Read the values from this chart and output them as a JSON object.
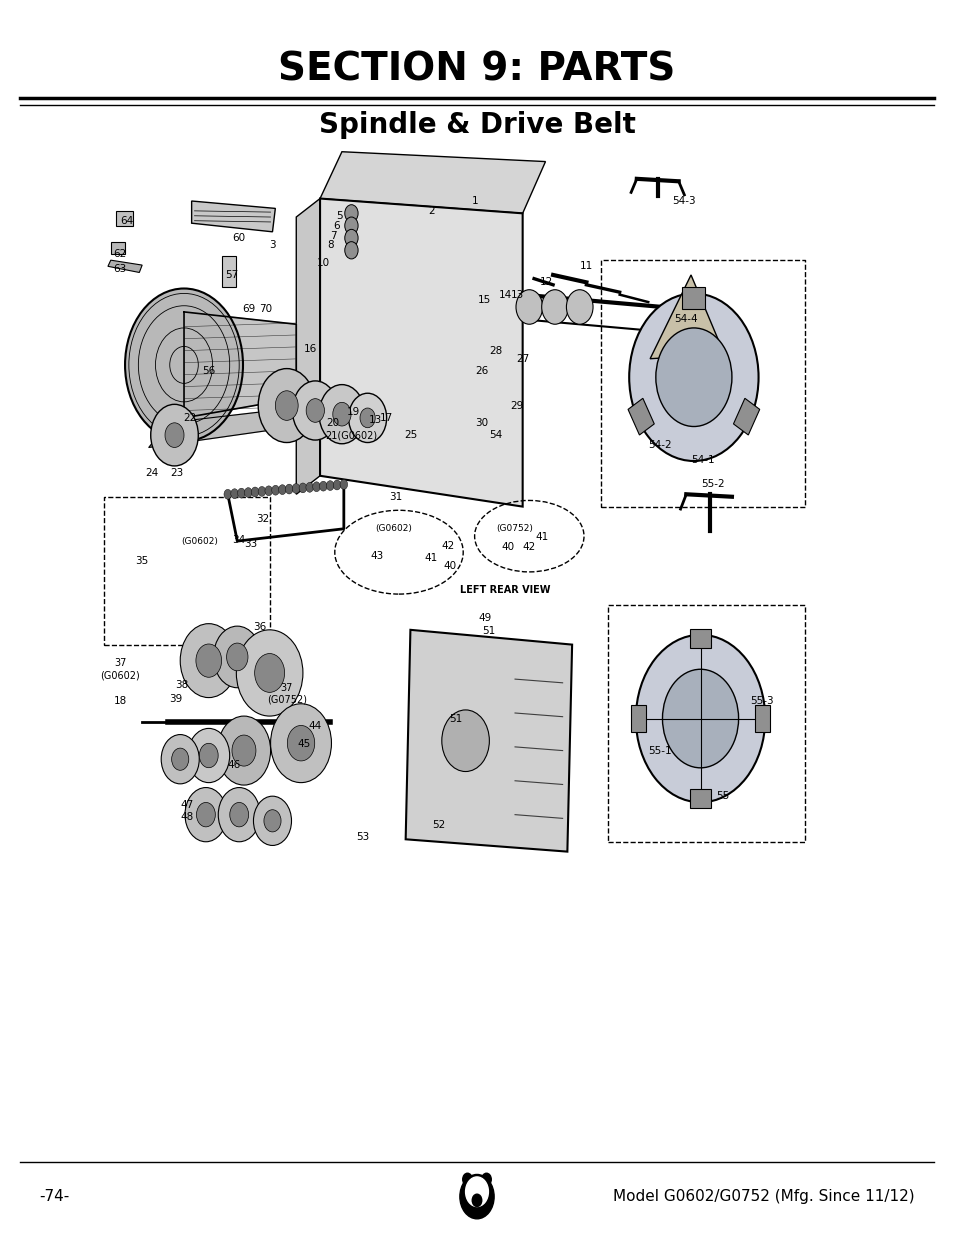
{
  "title": "SECTION 9: PARTS",
  "subtitle": "Spindle & Drive Belt",
  "page_number": "-74-",
  "model_text": "Model G0602/G0752 (Mfg. Since 11/12)",
  "background_color": "#ffffff",
  "text_color": "#000000",
  "title_fontsize": 28,
  "subtitle_fontsize": 20,
  "footer_fontsize": 11,
  "fig_width": 9.54,
  "fig_height": 12.35,
  "dpi": 100
}
